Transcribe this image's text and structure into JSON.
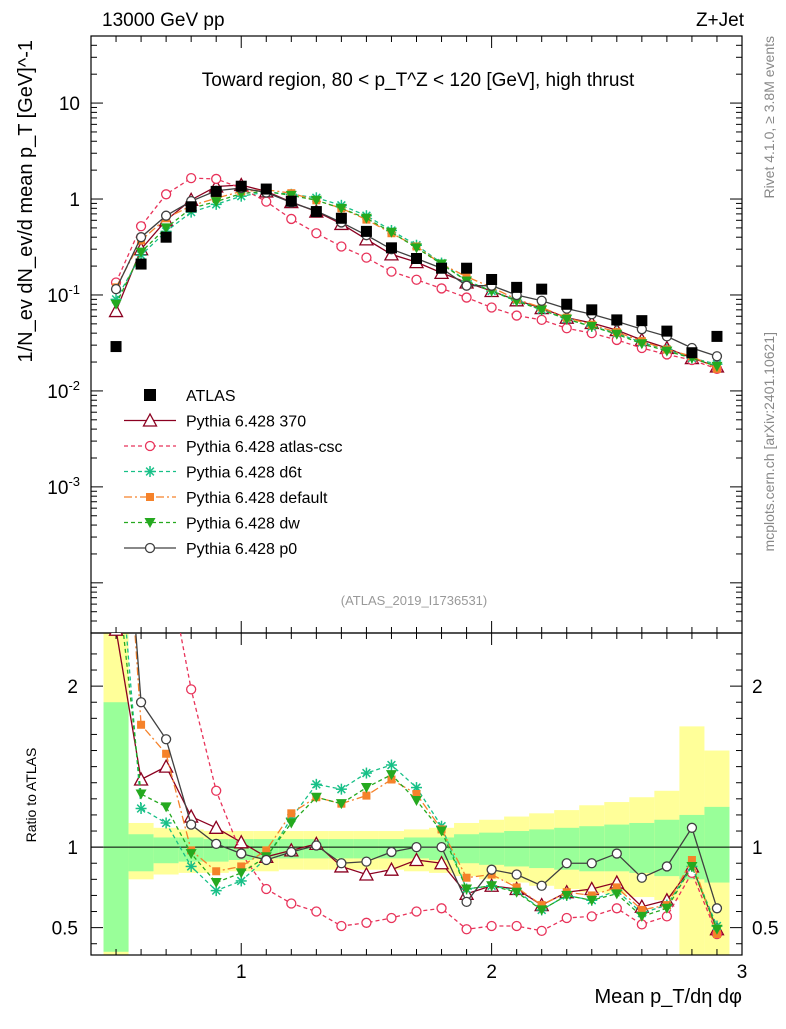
{
  "chart_data": {
    "type": "line",
    "header": {
      "left": "13000 GeV pp",
      "right": "Z+Jet"
    },
    "title": "Toward region, 80 < p_T^Z < 120 [GeV], high thrust",
    "ylabel": "1/N_ev dN_ev/d mean p_T [GeV]^-1",
    "xlabel": "Mean p_T/dη dφ",
    "ratio_ylabel": "Ratio to ATLAS",
    "watermark": "(ATLAS_2019_I1736531)",
    "side_right_top": "Rivet 4.1.0, ≥ 3.8M events",
    "side_right_bottom": "mcplots.cern.ch [arXiv:2401.10621]",
    "xlim": [
      0.4,
      3.0
    ],
    "ylim_main": [
      3e-05,
      50
    ],
    "ylim_ratio": [
      0.33,
      2.33
    ],
    "x_ticks": [
      "1",
      "2",
      "3"
    ],
    "main_y_ticks": [
      "10",
      "1",
      "10^-1",
      "10^-2",
      "10^-3"
    ],
    "ratio_y_ticks": [
      "2",
      "1",
      "0.5"
    ],
    "x": [
      0.5,
      0.6,
      0.7,
      0.8,
      0.9,
      1.0,
      1.1,
      1.2,
      1.3,
      1.4,
      1.5,
      1.6,
      1.7,
      1.8,
      1.9,
      2.0,
      2.1,
      2.2,
      2.3,
      2.4,
      2.5,
      2.6,
      2.7,
      2.8,
      2.9
    ],
    "data": {
      "name": "ATLAS",
      "values": [
        0.029,
        0.21,
        0.4,
        0.83,
        1.2,
        1.36,
        1.27,
        0.95,
        0.74,
        0.63,
        0.46,
        0.31,
        0.24,
        0.19,
        0.19,
        0.145,
        0.12,
        0.115,
        0.08,
        0.07,
        0.055,
        0.054,
        0.042,
        0.025,
        0.037
      ]
    },
    "series": [
      {
        "name": "Pythia 6.428 370",
        "color": "#8b0020",
        "dash": "",
        "marker": "triangle-open",
        "values": [
          0.068,
          0.3,
          0.6,
          0.98,
          1.35,
          1.4,
          1.2,
          0.93,
          0.74,
          0.55,
          0.38,
          0.265,
          0.22,
          0.17,
          0.135,
          0.11,
          0.088,
          0.073,
          0.058,
          0.051,
          0.043,
          0.034,
          0.028,
          0.022,
          0.018
        ]
      },
      {
        "name": "Pythia 6.428 atlas-csc",
        "color": "#e8335a",
        "dash": "4,3",
        "marker": "circle-open",
        "values": [
          0.135,
          0.52,
          1.12,
          1.65,
          1.62,
          1.3,
          0.94,
          0.62,
          0.44,
          0.32,
          0.245,
          0.175,
          0.144,
          0.117,
          0.094,
          0.074,
          0.061,
          0.055,
          0.045,
          0.04,
          0.034,
          0.028,
          0.024,
          0.021,
          0.017
        ]
      },
      {
        "name": "Pythia 6.428 d6t",
        "color": "#17c087",
        "dash": "4,3",
        "marker": "star",
        "values": [
          0.09,
          0.26,
          0.46,
          0.73,
          0.88,
          1.07,
          1.18,
          1.12,
          1.03,
          0.86,
          0.67,
          0.47,
          0.33,
          0.215,
          0.14,
          0.11,
          0.088,
          0.07,
          0.056,
          0.047,
          0.04,
          0.032,
          0.027,
          0.022,
          0.019
        ]
      },
      {
        "name": "Pythia 6.428 default",
        "color": "#f5822a",
        "dash": "8,3,2,3",
        "marker": "square",
        "values": [
          0.12,
          0.37,
          0.63,
          0.85,
          1.02,
          1.2,
          1.25,
          1.15,
          0.97,
          0.8,
          0.61,
          0.44,
          0.32,
          0.21,
          0.155,
          0.12,
          0.09,
          0.074,
          0.058,
          0.049,
          0.041,
          0.033,
          0.027,
          0.023,
          0.017
        ]
      },
      {
        "name": "Pythia 6.428 dw",
        "color": "#25a91f",
        "dash": "4,3",
        "marker": "triangle-down",
        "values": [
          0.08,
          0.28,
          0.5,
          0.8,
          0.94,
          1.14,
          1.2,
          1.09,
          0.97,
          0.8,
          0.63,
          0.45,
          0.31,
          0.21,
          0.14,
          0.11,
          0.086,
          0.07,
          0.056,
          0.047,
          0.039,
          0.031,
          0.026,
          0.022,
          0.018
        ]
      },
      {
        "name": "Pythia 6.428 p0",
        "color": "#404040",
        "dash": "",
        "marker": "circle-open",
        "values": [
          0.115,
          0.4,
          0.67,
          0.95,
          1.22,
          1.3,
          1.17,
          0.92,
          0.75,
          0.57,
          0.42,
          0.3,
          0.24,
          0.19,
          0.125,
          0.125,
          0.1,
          0.087,
          0.072,
          0.063,
          0.053,
          0.044,
          0.037,
          0.028,
          0.023
        ]
      }
    ],
    "ratios": [
      [
        2.35,
        1.42,
        1.5,
        1.19,
        1.12,
        1.03,
        0.94,
        0.98,
        1.02,
        0.88,
        0.83,
        0.86,
        0.92,
        0.9,
        0.71,
        0.76,
        0.74,
        0.64,
        0.72,
        0.74,
        0.78,
        0.63,
        0.67,
        0.88,
        0.49
      ],
      [
        4.6,
        2.48,
        2.8,
        1.98,
        1.35,
        0.96,
        0.74,
        0.65,
        0.6,
        0.51,
        0.53,
        0.56,
        0.6,
        0.62,
        0.49,
        0.51,
        0.51,
        0.48,
        0.56,
        0.57,
        0.62,
        0.52,
        0.57,
        0.84,
        0.46
      ],
      [
        3.1,
        1.24,
        1.15,
        0.88,
        0.73,
        0.79,
        0.93,
        1.18,
        1.39,
        1.36,
        1.46,
        1.51,
        1.37,
        1.13,
        0.74,
        0.76,
        0.73,
        0.61,
        0.7,
        0.67,
        0.73,
        0.59,
        0.64,
        0.88,
        0.51
      ],
      [
        4.1,
        1.76,
        1.58,
        0.98,
        0.85,
        0.88,
        0.98,
        1.21,
        1.31,
        1.27,
        1.32,
        1.42,
        1.33,
        1.11,
        0.81,
        0.83,
        0.75,
        0.64,
        0.72,
        0.7,
        0.75,
        0.61,
        0.64,
        0.92,
        0.46
      ],
      [
        2.75,
        1.33,
        1.25,
        0.96,
        0.78,
        0.84,
        0.94,
        1.15,
        1.31,
        1.27,
        1.37,
        1.45,
        1.29,
        1.1,
        0.74,
        0.76,
        0.72,
        0.61,
        0.7,
        0.67,
        0.71,
        0.57,
        0.62,
        0.88,
        0.49
      ],
      [
        3.95,
        1.9,
        1.67,
        1.14,
        1.02,
        0.96,
        0.92,
        0.97,
        1.01,
        0.9,
        0.91,
        0.97,
        1.0,
        1.0,
        0.66,
        0.86,
        0.83,
        0.76,
        0.9,
        0.9,
        0.96,
        0.81,
        0.88,
        1.12,
        0.62
      ]
    ],
    "band_1sigma": [
      0.35,
      0.85,
      0.9,
      0.91,
      0.91,
      0.92,
      0.93,
      0.93,
      0.93,
      0.93,
      0.93,
      0.93,
      0.93,
      0.92,
      0.9,
      0.89,
      0.88,
      0.87,
      0.86,
      0.85,
      0.85,
      0.84,
      0.82,
      0.8,
      0.78
    ],
    "band_1sigma_up": [
      1.9,
      1.08,
      1.06,
      1.06,
      1.05,
      1.05,
      1.05,
      1.05,
      1.05,
      1.05,
      1.05,
      1.05,
      1.06,
      1.06,
      1.08,
      1.09,
      1.1,
      1.11,
      1.12,
      1.13,
      1.14,
      1.15,
      1.17,
      1.2,
      1.25
    ],
    "band_total_lo": [
      0.3,
      0.8,
      0.83,
      0.84,
      0.84,
      0.85,
      0.85,
      0.86,
      0.86,
      0.86,
      0.86,
      0.86,
      0.85,
      0.84,
      0.82,
      0.8,
      0.78,
      0.76,
      0.74,
      0.72,
      0.71,
      0.69,
      0.67,
      0.3,
      0.3
    ],
    "band_total_hi": [
      2.4,
      1.15,
      1.12,
      1.11,
      1.1,
      1.1,
      1.1,
      1.1,
      1.1,
      1.1,
      1.1,
      1.1,
      1.11,
      1.12,
      1.15,
      1.17,
      1.19,
      1.21,
      1.23,
      1.26,
      1.28,
      1.31,
      1.35,
      1.75,
      1.6
    ]
  }
}
